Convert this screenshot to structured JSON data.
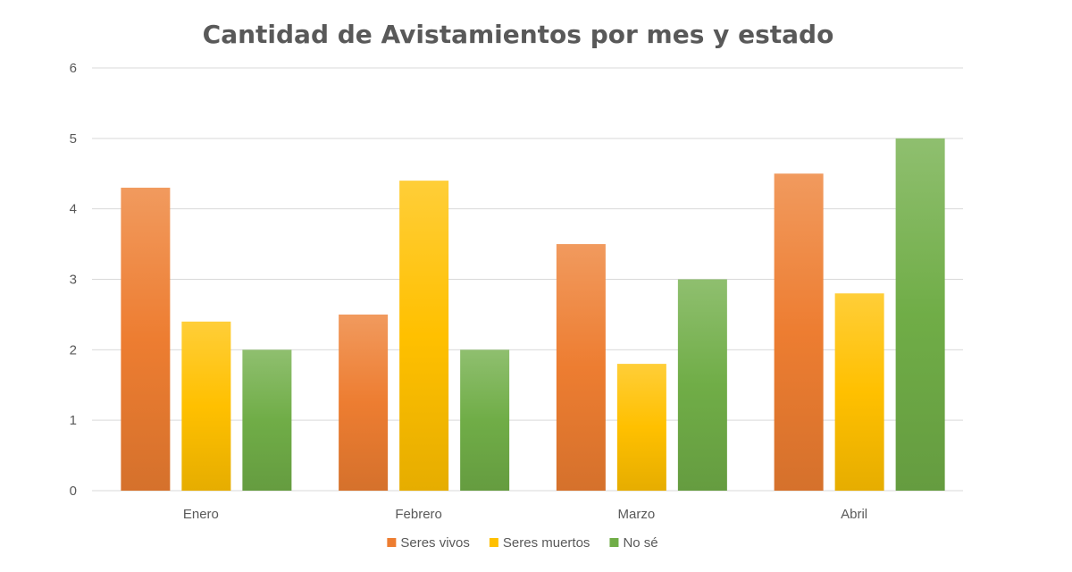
{
  "chart_data": {
    "type": "bar",
    "title": "Cantidad de Avistamientos por mes y estado",
    "categories": [
      "Enero",
      "Febrero",
      "Marzo",
      "Abril"
    ],
    "series": [
      {
        "name": "Seres vivos",
        "values": [
          4.3,
          2.5,
          3.5,
          4.5
        ],
        "color": "#ed7d31"
      },
      {
        "name": "Seres muertos",
        "values": [
          2.4,
          4.4,
          1.8,
          2.8
        ],
        "color": "#ffc000"
      },
      {
        "name": "No sé",
        "values": [
          2,
          2,
          3,
          5
        ],
        "color": "#70ad47"
      }
    ],
    "xlabel": "",
    "ylabel": "",
    "ylim": [
      0,
      6
    ],
    "yticks": [
      "0",
      "1",
      "2",
      "3",
      "4",
      "5",
      "6"
    ],
    "grid": true,
    "legend": "bottom"
  }
}
